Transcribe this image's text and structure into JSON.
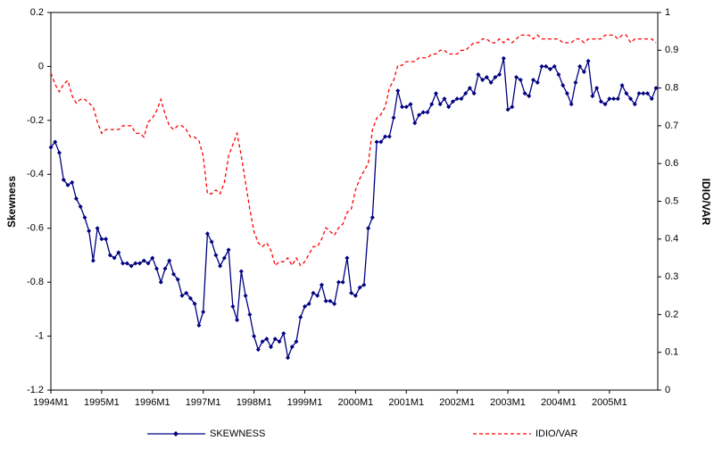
{
  "chart_data": {
    "type": "line",
    "categories": [
      "1994M1",
      null,
      null,
      null,
      null,
      null,
      null,
      null,
      null,
      null,
      null,
      null,
      "1995M1",
      null,
      null,
      null,
      null,
      null,
      null,
      null,
      null,
      null,
      null,
      null,
      "1996M1",
      null,
      null,
      null,
      null,
      null,
      null,
      null,
      null,
      null,
      null,
      null,
      "1997M1",
      null,
      null,
      null,
      null,
      null,
      null,
      null,
      null,
      null,
      null,
      null,
      "1998M1",
      null,
      null,
      null,
      null,
      null,
      null,
      null,
      null,
      null,
      null,
      null,
      "1999M1",
      null,
      null,
      null,
      null,
      null,
      null,
      null,
      null,
      null,
      null,
      null,
      "2000M1",
      null,
      null,
      null,
      null,
      null,
      null,
      null,
      null,
      null,
      null,
      null,
      "2001M1",
      null,
      null,
      null,
      null,
      null,
      null,
      null,
      null,
      null,
      null,
      null,
      "2002M1",
      null,
      null,
      null,
      null,
      null,
      null,
      null,
      null,
      null,
      null,
      null,
      "2003M1",
      null,
      null,
      null,
      null,
      null,
      null,
      null,
      null,
      null,
      null,
      null,
      "2004M1",
      null,
      null,
      null,
      null,
      null,
      null,
      null,
      null,
      null,
      null,
      null,
      "2005M1",
      null,
      null,
      null,
      null,
      null,
      null,
      null,
      null,
      null,
      null,
      null
    ],
    "series": [
      {
        "name": "SKEWNESS",
        "color": "#000080",
        "marker": true,
        "values": [
          -0.3,
          -0.28,
          -0.32,
          -0.42,
          -0.44,
          -0.43,
          -0.49,
          -0.52,
          -0.56,
          -0.61,
          -0.72,
          -0.6,
          -0.64,
          -0.64,
          -0.7,
          -0.71,
          -0.69,
          -0.73,
          -0.73,
          -0.74,
          -0.73,
          -0.73,
          -0.72,
          -0.73,
          -0.71,
          -0.75,
          -0.8,
          -0.75,
          -0.72,
          -0.77,
          -0.79,
          -0.85,
          -0.84,
          -0.86,
          -0.88,
          -0.96,
          -0.91,
          -0.62,
          -0.65,
          -0.7,
          -0.74,
          -0.71,
          -0.68,
          -0.89,
          -0.94,
          -0.76,
          -0.85,
          -0.92,
          -1.0,
          -1.05,
          -1.02,
          -1.01,
          -1.04,
          -1.01,
          -1.02,
          -0.99,
          -1.08,
          -1.04,
          -1.02,
          -0.93,
          -0.89,
          -0.88,
          -0.84,
          -0.85,
          -0.81,
          -0.87,
          -0.87,
          -0.88,
          -0.8,
          -0.8,
          -0.71,
          -0.84,
          -0.85,
          -0.82,
          -0.81,
          -0.6,
          -0.56,
          -0.28,
          -0.28,
          -0.26,
          -0.26,
          -0.19,
          -0.09,
          -0.15,
          -0.15,
          -0.14,
          -0.21,
          -0.18,
          -0.17,
          -0.17,
          -0.14,
          -0.1,
          -0.14,
          -0.12,
          -0.15,
          -0.13,
          -0.12,
          -0.12,
          -0.1,
          -0.08,
          -0.1,
          -0.03,
          -0.05,
          -0.04,
          -0.06,
          -0.04,
          -0.03,
          0.03,
          -0.16,
          -0.15,
          -0.04,
          -0.05,
          -0.1,
          -0.11,
          -0.05,
          -0.06,
          0.0,
          0.0,
          -0.01,
          0.0,
          -0.03,
          -0.07,
          -0.1,
          -0.14,
          -0.06,
          0.0,
          -0.02,
          0.02,
          -0.11,
          -0.08,
          -0.13,
          -0.14,
          -0.12,
          -0.12,
          -0.12,
          -0.07,
          -0.1,
          -0.12,
          -0.14,
          -0.1,
          -0.1,
          -0.1,
          -0.12,
          -0.08
        ]
      },
      {
        "name": "IDIO/VAR",
        "color": "#ff0000",
        "dashed": true,
        "axis": "y2",
        "values": [
          0.84,
          0.81,
          0.79,
          0.81,
          0.82,
          0.78,
          0.76,
          0.77,
          0.77,
          0.76,
          0.75,
          0.71,
          0.68,
          0.69,
          0.69,
          0.69,
          0.69,
          0.7,
          0.7,
          0.7,
          0.68,
          0.68,
          0.67,
          0.71,
          0.72,
          0.74,
          0.77,
          0.73,
          0.7,
          0.69,
          0.7,
          0.7,
          0.69,
          0.67,
          0.67,
          0.66,
          0.62,
          0.52,
          0.52,
          0.53,
          0.52,
          0.55,
          0.62,
          0.65,
          0.68,
          0.62,
          0.55,
          0.48,
          0.42,
          0.39,
          0.38,
          0.39,
          0.37,
          0.33,
          0.34,
          0.34,
          0.35,
          0.33,
          0.35,
          0.33,
          0.34,
          0.36,
          0.38,
          0.38,
          0.4,
          0.43,
          0.42,
          0.41,
          0.43,
          0.44,
          0.47,
          0.48,
          0.53,
          0.56,
          0.58,
          0.6,
          0.69,
          0.72,
          0.73,
          0.75,
          0.8,
          0.82,
          0.86,
          0.86,
          0.87,
          0.87,
          0.87,
          0.88,
          0.88,
          0.88,
          0.89,
          0.89,
          0.9,
          0.9,
          0.89,
          0.89,
          0.89,
          0.9,
          0.9,
          0.91,
          0.92,
          0.92,
          0.93,
          0.93,
          0.92,
          0.92,
          0.93,
          0.92,
          0.93,
          0.92,
          0.93,
          0.94,
          0.94,
          0.94,
          0.93,
          0.94,
          0.93,
          0.93,
          0.93,
          0.93,
          0.93,
          0.92,
          0.92,
          0.92,
          0.93,
          0.93,
          0.92,
          0.93,
          0.93,
          0.93,
          0.93,
          0.94,
          0.94,
          0.94,
          0.93,
          0.94,
          0.94,
          0.92,
          0.93,
          0.93,
          0.93,
          0.93,
          0.93,
          0.92
        ]
      }
    ],
    "ylabel": "Skewness",
    "y2label": "IDIO/VAR",
    "ylim": [
      -1.2,
      0.2
    ],
    "yticks": [
      -1.2,
      -1,
      -0.8,
      -0.6,
      -0.4,
      -0.2,
      0,
      0.2
    ],
    "y2lim": [
      0,
      1
    ],
    "y2ticks": [
      0,
      0.1,
      0.2,
      0.3,
      0.4,
      0.5,
      0.6,
      0.7,
      0.8,
      0.9,
      1
    ],
    "legend": "bottom"
  }
}
